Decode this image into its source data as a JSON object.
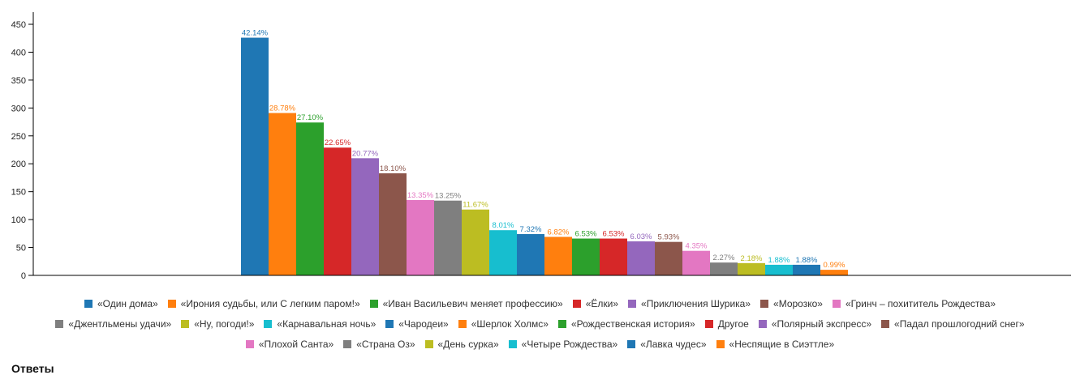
{
  "chart_data": {
    "type": "bar",
    "ylim": [
      0,
      450
    ],
    "yticks": [
      0,
      50,
      100,
      150,
      200,
      250,
      300,
      350,
      400,
      450
    ],
    "legend_position": "bottom",
    "grid": false,
    "series": [
      {
        "name": "«Один дома»",
        "value": 426,
        "label": "42.14%",
        "color": "#1f77b4"
      },
      {
        "name": "«Ирония судьбы, или С легким паром!»",
        "value": 291,
        "label": "28.78%",
        "color": "#ff7f0e"
      },
      {
        "name": "«Иван Васильевич меняет профессию»",
        "value": 274,
        "label": "27.10%",
        "color": "#2ca02c"
      },
      {
        "name": "«Ёлки»",
        "value": 229,
        "label": "22.65%",
        "color": "#d62728"
      },
      {
        "name": "«Приключения Шурика»",
        "value": 210,
        "label": "20.77%",
        "color": "#9467bd"
      },
      {
        "name": "«Морозко»",
        "value": 183,
        "label": "18.10%",
        "color": "#8c564b"
      },
      {
        "name": "«Гринч – похититель Рождества»",
        "value": 135,
        "label": "13.35%",
        "color": "#e377c2"
      },
      {
        "name": "«Джентльмены удачи»",
        "value": 134,
        "label": "13.25%",
        "color": "#7f7f7f"
      },
      {
        "name": "«Ну, погоди!»",
        "value": 118,
        "label": "11.67%",
        "color": "#bcbd22"
      },
      {
        "name": "«Карнавальная ночь»",
        "value": 81,
        "label": "8.01%",
        "color": "#17becf"
      },
      {
        "name": "«Чародеи»",
        "value": 74,
        "label": "7.32%",
        "color": "#1f77b4"
      },
      {
        "name": "«Шерлок Холмс»",
        "value": 69,
        "label": "6.82%",
        "color": "#ff7f0e"
      },
      {
        "name": "«Рождественская история»",
        "value": 66,
        "label": "6.53%",
        "color": "#2ca02c"
      },
      {
        "name": "Другое",
        "value": 66,
        "label": "6.53%",
        "color": "#d62728"
      },
      {
        "name": "«Полярный экспресс»",
        "value": 61,
        "label": "6.03%",
        "color": "#9467bd"
      },
      {
        "name": "«Падал прошлогодний снег»",
        "value": 60,
        "label": "5.93%",
        "color": "#8c564b"
      },
      {
        "name": "«Плохой Санта»",
        "value": 44,
        "label": "4.35%",
        "color": "#e377c2"
      },
      {
        "name": "«Страна Оз»",
        "value": 23,
        "label": "2.27%",
        "color": "#7f7f7f"
      },
      {
        "name": "«День сурка»",
        "value": 22,
        "label": "2.18%",
        "color": "#bcbd22"
      },
      {
        "name": "«Четыре Рождества»",
        "value": 19,
        "label": "1.88%",
        "color": "#17becf"
      },
      {
        "name": "«Лавка чудес»",
        "value": 19,
        "label": "1.88%",
        "color": "#1f77b4"
      },
      {
        "name": "«Неспящие в Сиэттле»",
        "value": 10,
        "label": "0.99%",
        "color": "#ff7f0e"
      }
    ]
  },
  "legend_rows": [
    [
      0,
      1,
      2,
      3,
      4,
      5,
      6
    ],
    [
      7,
      8,
      9,
      10,
      11,
      12,
      13,
      14,
      15
    ],
    [
      16,
      17,
      18,
      19,
      20,
      21
    ]
  ],
  "section_title": "Ответы"
}
